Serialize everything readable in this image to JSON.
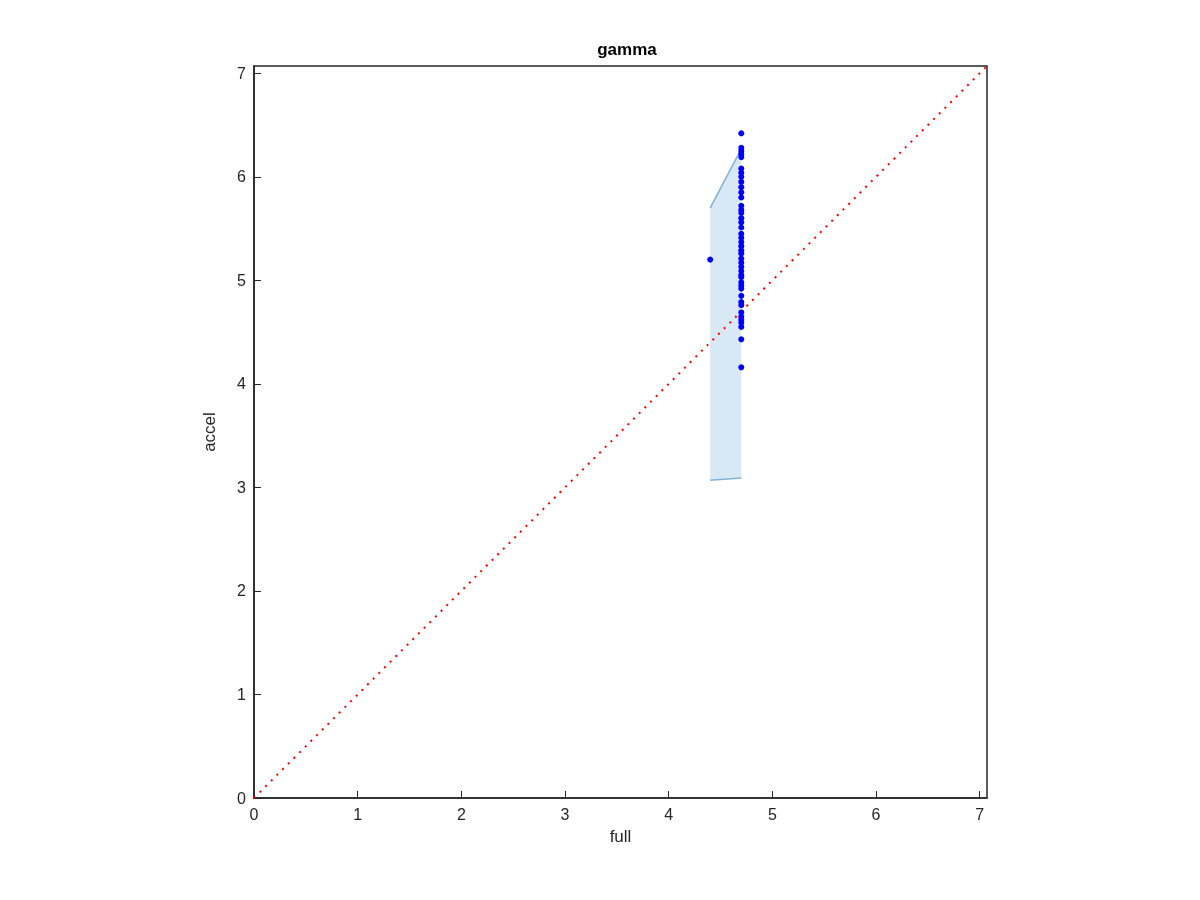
{
  "chart_data": {
    "type": "scatter",
    "title": "gamma",
    "xlabel": "full",
    "ylabel": "accel",
    "xlim": [
      0,
      7.07
    ],
    "ylim": [
      0,
      7.07
    ],
    "xticks": [
      0,
      1,
      2,
      3,
      4,
      5,
      6,
      7
    ],
    "yticks": [
      0,
      1,
      2,
      3,
      4,
      5,
      6,
      7
    ],
    "grid": false,
    "marker": "circle",
    "series": [
      {
        "type": "area",
        "color": "#7fb2d9",
        "x": [
          4.4,
          4.7
        ],
        "values": [
          null,
          null
        ],
        "lower": [
          3.07,
          3.09
        ],
        "upper": [
          5.7,
          6.27
        ]
      },
      {
        "type": "line",
        "color": "#7fb2d9",
        "marker": "none",
        "x": [
          4.4,
          4.7
        ],
        "values": [
          5.7,
          6.27
        ]
      },
      {
        "type": "line",
        "color": "#7fb2d9",
        "marker": "none",
        "x": [
          4.4,
          4.7
        ],
        "values": [
          3.07,
          3.09
        ]
      },
      {
        "type": "line",
        "color": "#ff0000",
        "line_style": "dotted",
        "marker": "none",
        "x": [
          0,
          7.07
        ],
        "values": [
          0,
          7.07
        ]
      },
      {
        "type": "scatter",
        "color": "#0000ff",
        "x": [
          4.4,
          4.7,
          4.7,
          4.7,
          4.7,
          4.7,
          4.7,
          4.7,
          4.7,
          4.7,
          4.7,
          4.7,
          4.7,
          4.7,
          4.7,
          4.7,
          4.7,
          4.7,
          4.7,
          4.7,
          4.7,
          4.7,
          4.7,
          4.7,
          4.7,
          4.7,
          4.7,
          4.7,
          4.7,
          4.7,
          4.7,
          4.7,
          4.7,
          4.7,
          4.7,
          4.7,
          4.7,
          4.7,
          4.7,
          4.7,
          4.7,
          4.7,
          4.7,
          4.7
        ],
        "values": [
          5.2,
          6.42,
          6.28,
          6.25,
          6.22,
          6.19,
          6.08,
          6.04,
          6.0,
          5.95,
          5.9,
          5.85,
          5.8,
          5.72,
          5.68,
          5.65,
          5.6,
          5.56,
          5.51,
          5.45,
          5.41,
          5.37,
          5.33,
          5.29,
          5.26,
          5.21,
          5.17,
          5.13,
          5.09,
          5.05,
          5.03,
          4.98,
          4.95,
          4.92,
          4.85,
          4.79,
          4.76,
          4.69,
          4.65,
          4.62,
          4.59,
          4.55,
          4.43,
          4.16
        ]
      }
    ]
  }
}
